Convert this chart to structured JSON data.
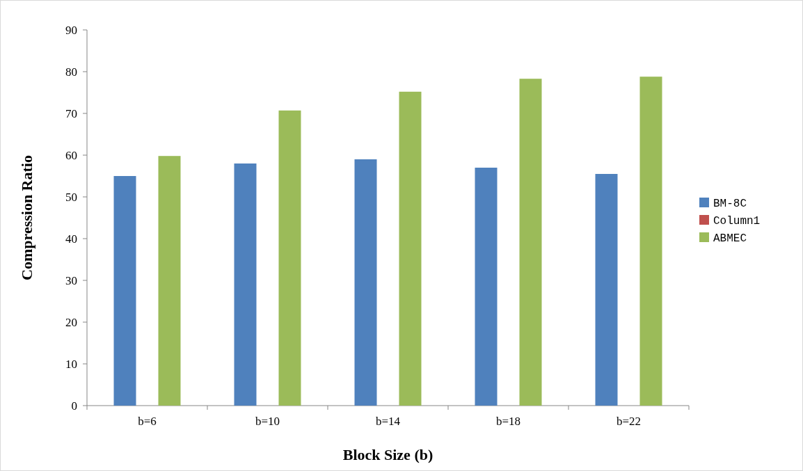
{
  "chart_data": {
    "type": "bar",
    "xlabel": "Block Size (b)",
    "ylabel": "Compression Ratio",
    "categories": [
      "b=6",
      "b=10",
      "b=14",
      "b=18",
      "b=22"
    ],
    "series": [
      {
        "name": "BM-8C",
        "color": "#4f81bd",
        "values": [
          55,
          58,
          59,
          57,
          55.5
        ]
      },
      {
        "name": "Column1",
        "color": "#c0504d",
        "values": [
          null,
          null,
          null,
          null,
          null
        ]
      },
      {
        "name": "ABMEC",
        "color": "#9bbb59",
        "values": [
          59.8,
          70.7,
          75.2,
          78.3,
          78.8
        ]
      }
    ],
    "ylim": [
      0,
      90
    ],
    "yticks": [
      0,
      10,
      20,
      30,
      40,
      50,
      60,
      70,
      80,
      90
    ],
    "grid": false,
    "legend": "right"
  }
}
